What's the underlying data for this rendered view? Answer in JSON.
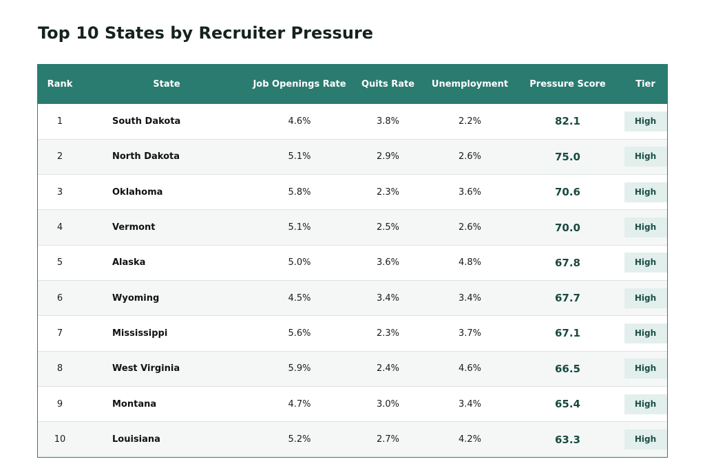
{
  "title": "Top 10 States by Recruiter Pressure",
  "colors": {
    "header_bg": "#2a7b70",
    "header_text": "#ffffff",
    "row_alt": "#f4f7f6",
    "score_text": "#194a42",
    "badge_bg": "#e2efec",
    "badge_text": "#1c4f46"
  },
  "chart_data": {
    "type": "table",
    "title": "Top 10 States by Recruiter Pressure",
    "columns": [
      "Rank",
      "State",
      "Job Openings Rate",
      "Quits Rate",
      "Unemployment",
      "Pressure Score",
      "Tier"
    ],
    "rows": [
      [
        "1",
        "South Dakota",
        "4.6%",
        "3.8%",
        "2.2%",
        "82.1",
        "High"
      ],
      [
        "2",
        "North Dakota",
        "5.1%",
        "2.9%",
        "2.6%",
        "75.0",
        "High"
      ],
      [
        "3",
        "Oklahoma",
        "5.8%",
        "2.3%",
        "3.6%",
        "70.6",
        "High"
      ],
      [
        "4",
        "Vermont",
        "5.1%",
        "2.5%",
        "2.6%",
        "70.0",
        "High"
      ],
      [
        "5",
        "Alaska",
        "5.0%",
        "3.6%",
        "4.8%",
        "67.8",
        "High"
      ],
      [
        "6",
        "Wyoming",
        "4.5%",
        "3.4%",
        "3.4%",
        "67.7",
        "High"
      ],
      [
        "7",
        "Mississippi",
        "5.6%",
        "2.3%",
        "3.7%",
        "67.1",
        "High"
      ],
      [
        "8",
        "West Virginia",
        "5.9%",
        "2.4%",
        "4.6%",
        "66.5",
        "High"
      ],
      [
        "9",
        "Montana",
        "4.7%",
        "3.0%",
        "3.4%",
        "65.4",
        "High"
      ],
      [
        "10",
        "Louisiana",
        "5.2%",
        "2.7%",
        "4.2%",
        "63.3",
        "High"
      ]
    ]
  }
}
